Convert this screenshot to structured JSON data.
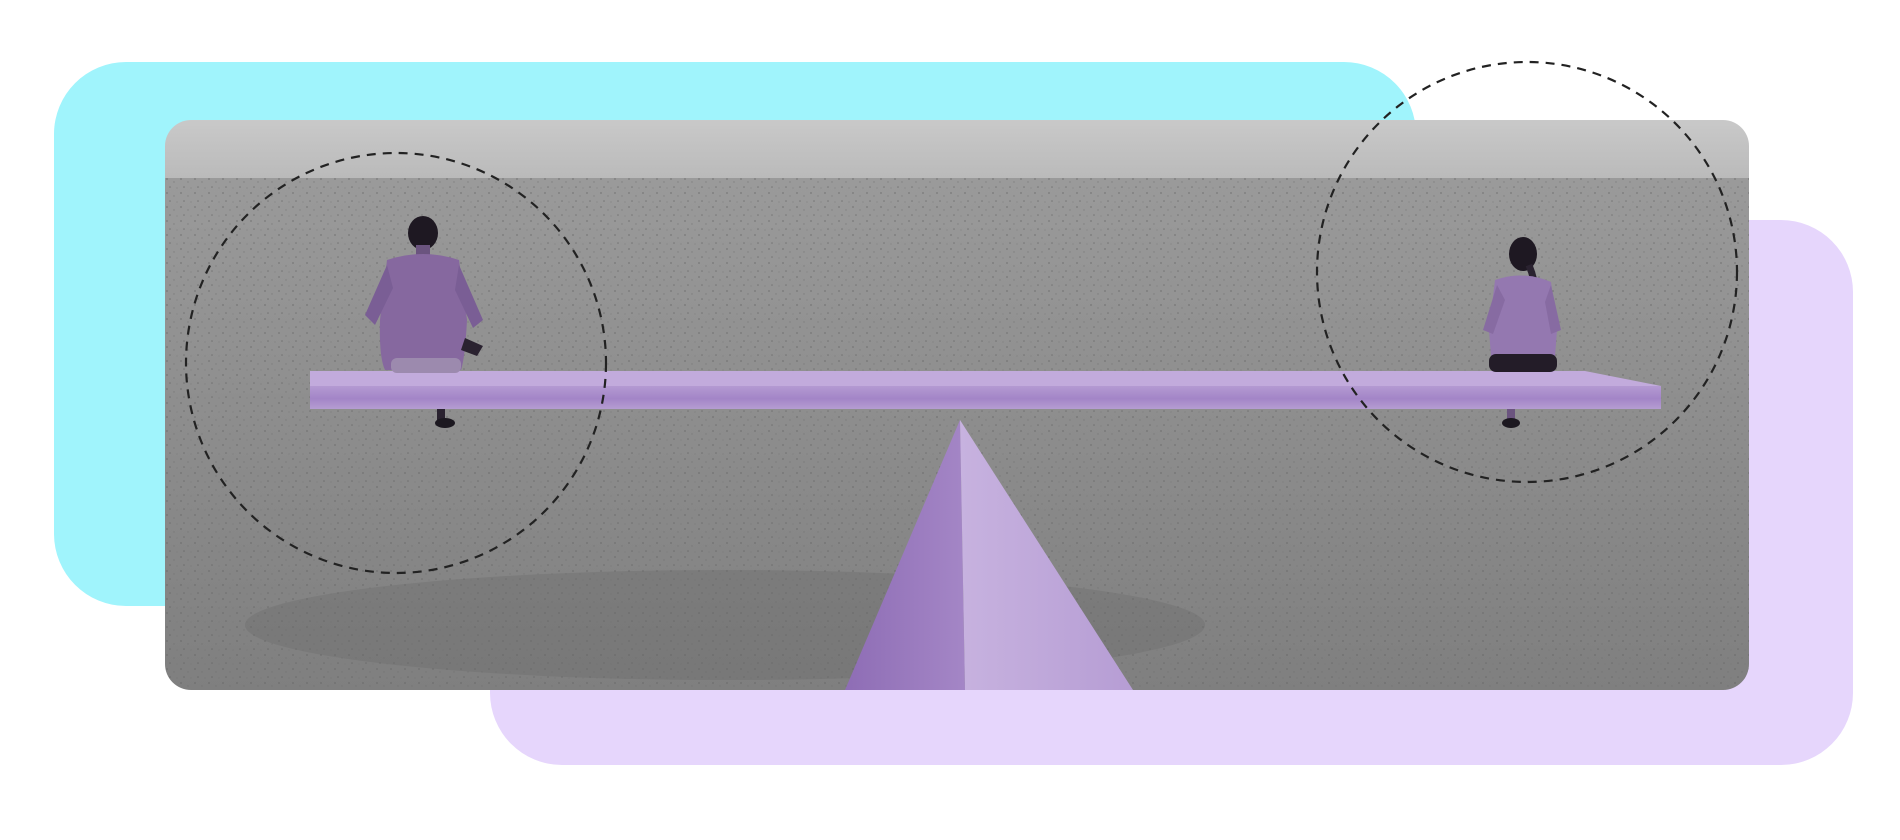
{
  "scene": {
    "subject": "seesaw-balance",
    "colors": {
      "background": "#ffffff",
      "cyan_panel": "#a0f4fc",
      "lavender_panel": "#e6d6fc",
      "ground": "#8c8c8c",
      "sky": "#c4c4c4",
      "seesaw": "#a98bc9",
      "seesaw_dark": "#8a6aae",
      "figures": "#8e6fb0",
      "dash": "#222222"
    },
    "icons": {
      "left_person": "person-sitting-icon",
      "right_person": "person-sitting-icon",
      "fulcrum": "triangle-fulcrum-icon"
    }
  }
}
